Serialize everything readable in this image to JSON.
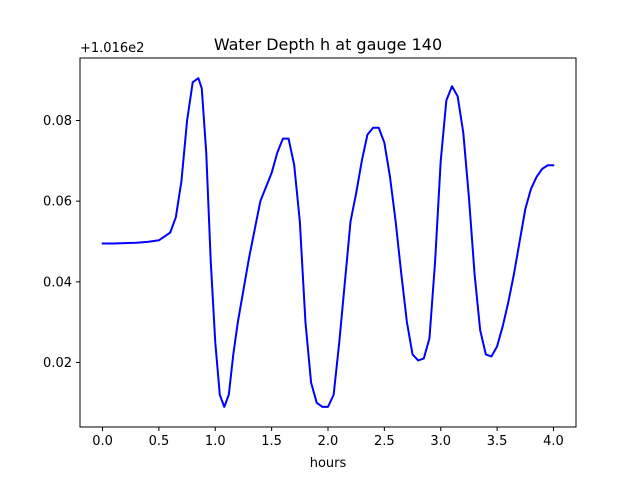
{
  "chart_data": {
    "type": "line",
    "title": "Water Depth h at gauge 140",
    "xlabel": "hours",
    "ylabel": "",
    "y_offset_label": "+1.016e2",
    "xlim": [
      -0.2,
      4.2
    ],
    "ylim": [
      0.004,
      0.0955
    ],
    "x_ticks": [
      0.0,
      0.5,
      1.0,
      1.5,
      2.0,
      2.5,
      3.0,
      3.5,
      4.0
    ],
    "x_tick_labels": [
      "0.0",
      "0.5",
      "1.0",
      "1.5",
      "2.0",
      "2.5",
      "3.0",
      "3.5",
      "4.0"
    ],
    "y_ticks": [
      0.02,
      0.04,
      0.06,
      0.08
    ],
    "y_tick_labels": [
      "0.02",
      "0.04",
      "0.06",
      "0.08"
    ],
    "grid": false,
    "series": [
      {
        "color": "#0000ff",
        "x": [
          0.0,
          0.1,
          0.2,
          0.3,
          0.4,
          0.5,
          0.6,
          0.65,
          0.7,
          0.75,
          0.8,
          0.85,
          0.88,
          0.92,
          0.96,
          1.0,
          1.04,
          1.08,
          1.12,
          1.16,
          1.2,
          1.3,
          1.4,
          1.5,
          1.55,
          1.6,
          1.65,
          1.7,
          1.75,
          1.8,
          1.85,
          1.9,
          1.95,
          2.0,
          2.05,
          2.1,
          2.15,
          2.2,
          2.25,
          2.3,
          2.35,
          2.4,
          2.45,
          2.5,
          2.55,
          2.6,
          2.65,
          2.7,
          2.75,
          2.8,
          2.85,
          2.9,
          2.95,
          3.0,
          3.05,
          3.1,
          3.15,
          3.2,
          3.25,
          3.3,
          3.35,
          3.4,
          3.45,
          3.5,
          3.55,
          3.6,
          3.65,
          3.7,
          3.75,
          3.8,
          3.85,
          3.9,
          3.95,
          4.0
        ],
        "y": [
          0.0495,
          0.0495,
          0.0496,
          0.0497,
          0.0499,
          0.0503,
          0.0522,
          0.056,
          0.065,
          0.08,
          0.0895,
          0.0905,
          0.088,
          0.072,
          0.045,
          0.025,
          0.012,
          0.009,
          0.012,
          0.022,
          0.03,
          0.046,
          0.06,
          0.067,
          0.072,
          0.0755,
          0.0755,
          0.069,
          0.055,
          0.03,
          0.015,
          0.01,
          0.009,
          0.009,
          0.012,
          0.025,
          0.04,
          0.055,
          0.062,
          0.07,
          0.0765,
          0.0782,
          0.0782,
          0.0745,
          0.066,
          0.055,
          0.042,
          0.03,
          0.022,
          0.0205,
          0.021,
          0.026,
          0.045,
          0.07,
          0.085,
          0.0885,
          0.086,
          0.077,
          0.061,
          0.042,
          0.028,
          0.022,
          0.0215,
          0.024,
          0.029,
          0.035,
          0.042,
          0.05,
          0.058,
          0.063,
          0.066,
          0.068,
          0.0689,
          0.0689
        ]
      }
    ]
  }
}
